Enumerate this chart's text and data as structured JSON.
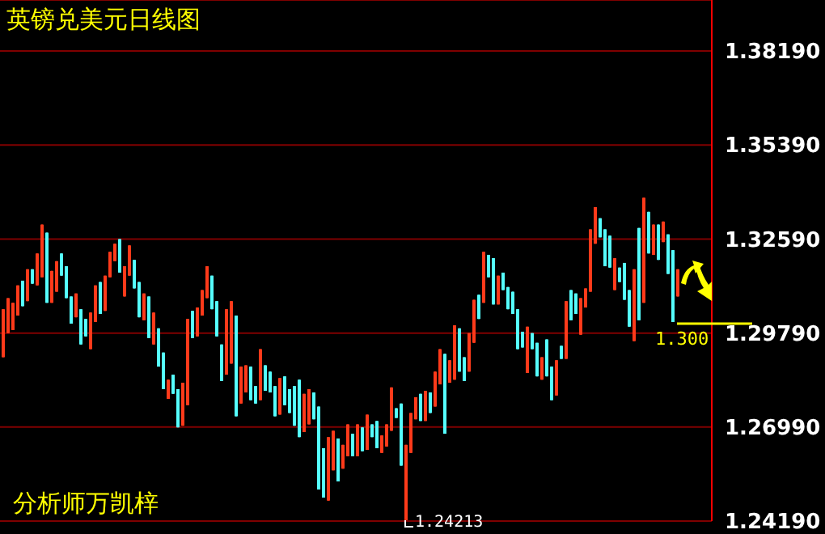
{
  "chart_data": {
    "type": "candlestick",
    "title": "英镑兑美元日线图",
    "categories": [
      null,
      null,
      null,
      null,
      null,
      null,
      null,
      null,
      null,
      null,
      null,
      null,
      null,
      null,
      null,
      null,
      null,
      null,
      null,
      null,
      null,
      null,
      null,
      null,
      null,
      null,
      null,
      null,
      null,
      null,
      null,
      null,
      null,
      null,
      null,
      null,
      null,
      null,
      null,
      null,
      null,
      null,
      null,
      null,
      null,
      null,
      null,
      null,
      null,
      null,
      null,
      null,
      null,
      null,
      null,
      null,
      null,
      null,
      null,
      null,
      null,
      null,
      null,
      null,
      null,
      null,
      null,
      null,
      null,
      null,
      null,
      null,
      null,
      null,
      null,
      null,
      null,
      null,
      null,
      null,
      null,
      null,
      null,
      null,
      null,
      null,
      null,
      null,
      null,
      null,
      null,
      null,
      null,
      null,
      null,
      null,
      null,
      null,
      null,
      null,
      null,
      null,
      null,
      null,
      null,
      null,
      null,
      null,
      null,
      null,
      null,
      null,
      null,
      null,
      null,
      null,
      null,
      null,
      null,
      null,
      null,
      null,
      null,
      null,
      null,
      null,
      null,
      null,
      null,
      null,
      null,
      null,
      null,
      null,
      null,
      null,
      null,
      null,
      null,
      null
    ],
    "ohlc": [
      [
        1.2907,
        1.305,
        1.2907,
        1.305
      ],
      [
        1.2979,
        1.3083,
        1.2979,
        1.3083
      ],
      [
        1.2988,
        1.3069,
        1.2988,
        1.3069
      ],
      [
        1.3031,
        1.3121,
        1.3031,
        1.3121
      ],
      [
        1.3135,
        1.3135,
        1.3059,
        1.3059
      ],
      [
        1.3074,
        1.3169,
        1.3074,
        1.3169
      ],
      [
        1.3169,
        1.3169,
        1.3126,
        1.3126
      ],
      [
        1.3121,
        1.3216,
        1.3121,
        1.3216
      ],
      [
        1.3145,
        1.3302,
        1.3145,
        1.3302
      ],
      [
        1.3278,
        1.3278,
        1.3069,
        1.3069
      ],
      [
        1.3069,
        1.3164,
        1.3069,
        1.3164
      ],
      [
        1.3102,
        1.3193,
        1.3102,
        1.3193
      ],
      [
        1.3216,
        1.3216,
        1.315,
        1.315
      ],
      [
        1.3178,
        1.3178,
        1.3083,
        1.3083
      ],
      [
        1.3088,
        1.3088,
        1.3007,
        1.3007
      ],
      [
        1.3026,
        1.3097,
        1.3026,
        1.3097
      ],
      [
        1.305,
        1.305,
        1.2945,
        1.2945
      ],
      [
        1.3021,
        1.3021,
        1.2969,
        1.2969
      ],
      [
        1.2931,
        1.304,
        1.2931,
        1.304
      ],
      [
        1.3012,
        1.3121,
        1.3012,
        1.3121
      ],
      [
        1.3131,
        1.3131,
        1.3036,
        1.3036
      ],
      [
        1.3045,
        1.315,
        1.3045,
        1.315
      ],
      [
        1.3145,
        1.3221,
        1.3145,
        1.3221
      ],
      [
        1.3193,
        1.3245,
        1.3193,
        1.3245
      ],
      [
        1.3259,
        1.3259,
        1.3159,
        1.3159
      ],
      [
        1.3088,
        1.3178,
        1.3088,
        1.3178
      ],
      [
        1.315,
        1.324,
        1.315,
        1.324
      ],
      [
        1.3197,
        1.3197,
        1.3112,
        1.3112
      ],
      [
        1.3131,
        1.3131,
        1.3026,
        1.3026
      ],
      [
        1.3017,
        1.3097,
        1.3017,
        1.3097
      ],
      [
        1.3088,
        1.3088,
        1.2964,
        1.2964
      ],
      [
        1.2945,
        1.304,
        1.2945,
        1.304
      ],
      [
        1.2993,
        1.2993,
        1.2879,
        1.2879
      ],
      [
        1.2921,
        1.2921,
        1.2812,
        1.2812
      ],
      [
        1.2783,
        1.284,
        1.2783,
        1.284
      ],
      [
        1.2855,
        1.2855,
        1.2798,
        1.2798
      ],
      [
        1.2812,
        1.2812,
        1.2698,
        1.2698
      ],
      [
        1.2703,
        1.2831,
        1.2703,
        1.2831
      ],
      [
        1.2764,
        1.3021,
        1.2764,
        1.3021
      ],
      [
        1.3045,
        1.3045,
        1.2964,
        1.2964
      ],
      [
        1.2969,
        1.3055,
        1.2969,
        1.3055
      ],
      [
        1.3031,
        1.3107,
        1.3031,
        1.3107
      ],
      [
        1.3083,
        1.3178,
        1.3083,
        1.3178
      ],
      [
        1.315,
        1.315,
        1.305,
        1.305
      ],
      [
        1.3074,
        1.3074,
        1.2969,
        1.2969
      ],
      [
        1.2945,
        1.2945,
        1.2836,
        1.2836
      ],
      [
        1.2855,
        1.305,
        1.2855,
        1.305
      ],
      [
        1.2888,
        1.3074,
        1.2888,
        1.3074
      ],
      [
        1.3031,
        1.3031,
        1.2731,
        1.2731
      ],
      [
        1.2769,
        1.2879,
        1.2769,
        1.2879
      ],
      [
        1.2802,
        1.2883,
        1.2802,
        1.2883
      ],
      [
        1.2879,
        1.2879,
        1.2779,
        1.2779
      ],
      [
        1.2821,
        1.2821,
        1.2769,
        1.2769
      ],
      [
        1.2779,
        1.2931,
        1.2779,
        1.2931
      ],
      [
        1.2883,
        1.2883,
        1.2807,
        1.2807
      ],
      [
        1.2864,
        1.2864,
        1.2802,
        1.2802
      ],
      [
        1.2821,
        1.2821,
        1.2731,
        1.2731
      ],
      [
        1.2736,
        1.2845,
        1.2736,
        1.2845
      ],
      [
        1.285,
        1.285,
        1.2764,
        1.2764
      ],
      [
        1.2812,
        1.2812,
        1.2741,
        1.2741
      ],
      [
        1.2821,
        1.2821,
        1.2703,
        1.2703
      ],
      [
        1.284,
        1.284,
        1.2669,
        1.2669
      ],
      [
        1.2684,
        1.2798,
        1.2684,
        1.2798
      ],
      [
        1.2707,
        1.2812,
        1.2707,
        1.2812
      ],
      [
        1.2802,
        1.2802,
        1.2722,
        1.2722
      ],
      [
        1.276,
        1.276,
        1.2513,
        1.2513
      ],
      [
        1.2636,
        1.2636,
        1.2489,
        1.2489
      ],
      [
        1.248,
        1.2669,
        1.248,
        1.2669
      ],
      [
        1.257,
        1.2688,
        1.257,
        1.2688
      ],
      [
        1.2665,
        1.2665,
        1.2537,
        1.2537
      ],
      [
        1.2575,
        1.2646,
        1.2575,
        1.2646
      ],
      [
        1.2612,
        1.2707,
        1.2612,
        1.2707
      ],
      [
        1.2679,
        1.2679,
        1.2612,
        1.2612
      ],
      [
        1.2612,
        1.2707,
        1.2612,
        1.2707
      ],
      [
        1.2698,
        1.2698,
        1.2627,
        1.2627
      ],
      [
        1.2631,
        1.2736,
        1.2631,
        1.2736
      ],
      [
        1.2707,
        1.2707,
        1.2669,
        1.2669
      ],
      [
        1.2717,
        1.2717,
        1.2636,
        1.2636
      ],
      [
        1.2622,
        1.2674,
        1.2622,
        1.2674
      ],
      [
        1.2641,
        1.2707,
        1.2641,
        1.2707
      ],
      [
        1.2688,
        1.2817,
        1.2688,
        1.2817
      ],
      [
        1.2755,
        1.2755,
        1.2726,
        1.2726
      ],
      [
        1.2769,
        1.2769,
        1.2584,
        1.2584
      ],
      [
        1.24213,
        1.2646,
        1.24213,
        1.2646
      ],
      [
        1.2622,
        1.2741,
        1.2622,
        1.2741
      ],
      [
        1.2722,
        1.2788,
        1.2722,
        1.2788
      ],
      [
        1.2798,
        1.2798,
        1.2717,
        1.2717
      ],
      [
        1.2717,
        1.2807,
        1.2717,
        1.2807
      ],
      [
        1.2802,
        1.2802,
        1.2741,
        1.2741
      ],
      [
        1.276,
        1.2864,
        1.276,
        1.2864
      ],
      [
        1.2826,
        1.2931,
        1.2826,
        1.2931
      ],
      [
        1.2917,
        1.2917,
        1.2679,
        1.2679
      ],
      [
        1.2831,
        1.2898,
        1.2831,
        1.2898
      ],
      [
        1.284,
        1.3002,
        1.284,
        1.3002
      ],
      [
        1.2993,
        1.2993,
        1.2864,
        1.2864
      ],
      [
        1.2907,
        1.2907,
        1.2836,
        1.2836
      ],
      [
        1.2864,
        1.2979,
        1.2864,
        1.2979
      ],
      [
        1.295,
        1.3078,
        1.295,
        1.3078
      ],
      [
        1.3093,
        1.3093,
        1.3021,
        1.3021
      ],
      [
        1.3069,
        1.3221,
        1.3069,
        1.3221
      ],
      [
        1.3212,
        1.3212,
        1.3145,
        1.3145
      ],
      [
        1.3202,
        1.3202,
        1.3064,
        1.3064
      ],
      [
        1.3064,
        1.315,
        1.3064,
        1.315
      ],
      [
        1.3159,
        1.3159,
        1.3107,
        1.3107
      ],
      [
        1.3116,
        1.3116,
        1.305,
        1.305
      ],
      [
        1.3102,
        1.3102,
        1.3036,
        1.3036
      ],
      [
        1.305,
        1.305,
        1.2931,
        1.2931
      ],
      [
        1.2983,
        1.2983,
        1.2936,
        1.2936
      ],
      [
        1.286,
        1.2998,
        1.286,
        1.2998
      ],
      [
        1.2979,
        1.2979,
        1.2931,
        1.2931
      ],
      [
        1.295,
        1.295,
        1.285,
        1.285
      ],
      [
        1.284,
        1.2907,
        1.284,
        1.2907
      ],
      [
        1.296,
        1.296,
        1.285,
        1.285
      ],
      [
        1.2879,
        1.2879,
        1.2779,
        1.2779
      ],
      [
        1.2793,
        1.2898,
        1.2793,
        1.2898
      ],
      [
        1.2941,
        1.2941,
        1.2902,
        1.2902
      ],
      [
        1.2902,
        1.3074,
        1.2902,
        1.3074
      ],
      [
        1.3107,
        1.3107,
        1.3017,
        1.3017
      ],
      [
        1.3097,
        1.3097,
        1.3036,
        1.3036
      ],
      [
        1.2974,
        1.3083,
        1.2974,
        1.3083
      ],
      [
        1.3055,
        1.3112,
        1.3055,
        1.3112
      ],
      [
        1.3102,
        1.3288,
        1.3102,
        1.3288
      ],
      [
        1.3245,
        1.3354,
        1.3245,
        1.3354
      ],
      [
        1.3321,
        1.3321,
        1.3264,
        1.3264
      ],
      [
        1.3288,
        1.3288,
        1.3178,
        1.3178
      ],
      [
        1.3269,
        1.3269,
        1.3174,
        1.3174
      ],
      [
        1.3107,
        1.3202,
        1.3107,
        1.3202
      ],
      [
        1.3174,
        1.3174,
        1.3131,
        1.3131
      ],
      [
        1.3188,
        1.3188,
        1.3078,
        1.3078
      ],
      [
        1.3107,
        1.3107,
        1.2998,
        1.2998
      ],
      [
        1.2955,
        1.3169,
        1.2955,
        1.3169
      ],
      [
        1.3292,
        1.3292,
        1.3017,
        1.3017
      ],
      [
        1.3069,
        1.3382,
        1.3069,
        1.3382
      ],
      [
        1.334,
        1.334,
        1.3216,
        1.3216
      ],
      [
        1.3212,
        1.3302,
        1.3212,
        1.3302
      ],
      [
        1.3302,
        1.3302,
        1.3197,
        1.3197
      ],
      [
        1.325,
        1.3311,
        1.325,
        1.3311
      ],
      [
        1.3273,
        1.3273,
        1.3155,
        1.3155
      ],
      [
        1.3226,
        1.3226,
        1.3012,
        1.3012
      ],
      [
        1.3088,
        1.3169,
        1.3088,
        1.3169
      ]
    ],
    "colors": [
      "#ff3a1a",
      "#ff3a1a",
      "#ff3a1a",
      "#ff3a1a",
      "#55ffff",
      "#ff3a1a",
      "#55ffff",
      "#ff3a1a",
      "#ff3a1a",
      "#55ffff",
      "#ff3a1a",
      "#ff3a1a",
      "#55ffff",
      "#55ffff",
      "#55ffff",
      "#ff3a1a",
      "#55ffff",
      "#55ffff",
      "#ff3a1a",
      "#ff3a1a",
      "#55ffff",
      "#ff3a1a",
      "#ff3a1a",
      "#ff3a1a",
      "#55ffff",
      "#ff3a1a",
      "#ff3a1a",
      "#55ffff",
      "#55ffff",
      "#ff3a1a",
      "#55ffff",
      "#ff3a1a",
      "#55ffff",
      "#55ffff",
      "#ff3a1a",
      "#55ffff",
      "#55ffff",
      "#ff3a1a",
      "#ff3a1a",
      "#55ffff",
      "#ff3a1a",
      "#ff3a1a",
      "#ff3a1a",
      "#55ffff",
      "#55ffff",
      "#55ffff",
      "#ff3a1a",
      "#ff3a1a",
      "#55ffff",
      "#ff3a1a",
      "#ff3a1a",
      "#55ffff",
      "#55ffff",
      "#ff3a1a",
      "#55ffff",
      "#55ffff",
      "#55ffff",
      "#ff3a1a",
      "#55ffff",
      "#55ffff",
      "#55ffff",
      "#55ffff",
      "#ff3a1a",
      "#ff3a1a",
      "#55ffff",
      "#55ffff",
      "#55ffff",
      "#ff3a1a",
      "#ff3a1a",
      "#55ffff",
      "#ff3a1a",
      "#ff3a1a",
      "#55ffff",
      "#ff3a1a",
      "#55ffff",
      "#ff3a1a",
      "#55ffff",
      "#55ffff",
      "#ff3a1a",
      "#ff3a1a",
      "#ff3a1a",
      "#55ffff",
      "#55ffff",
      "#ff3a1a",
      "#ff3a1a",
      "#ff3a1a",
      "#55ffff",
      "#ff3a1a",
      "#55ffff",
      "#ff3a1a",
      "#ff3a1a",
      "#55ffff",
      "#ff3a1a",
      "#ff3a1a",
      "#55ffff",
      "#55ffff",
      "#ff3a1a",
      "#ff3a1a",
      "#55ffff",
      "#ff3a1a",
      "#55ffff",
      "#55ffff",
      "#ff3a1a",
      "#55ffff",
      "#55ffff",
      "#55ffff",
      "#55ffff",
      "#55ffff",
      "#ff3a1a",
      "#55ffff",
      "#55ffff",
      "#ff3a1a",
      "#55ffff",
      "#55ffff",
      "#ff3a1a",
      "#55ffff",
      "#ff3a1a",
      "#55ffff",
      "#55ffff",
      "#ff3a1a",
      "#ff3a1a",
      "#ff3a1a",
      "#ff3a1a",
      "#55ffff",
      "#55ffff",
      "#55ffff",
      "#ff3a1a",
      "#55ffff",
      "#55ffff",
      "#55ffff",
      "#ff3a1a",
      "#55ffff",
      "#ff3a1a",
      "#55ffff",
      "#ff3a1a",
      "#55ffff",
      "#ff3a1a",
      "#55ffff",
      "#55ffff",
      "#ff3a1a"
    ],
    "ylim": [
      1.2419,
      1.3971
    ],
    "yticks": [
      {
        "value": 1.2419,
        "label": "1.24190"
      },
      {
        "value": 1.2699,
        "label": "1.26990"
      },
      {
        "value": 1.2979,
        "label": "1.29790"
      },
      {
        "value": 1.3259,
        "label": "1.32590"
      },
      {
        "value": 1.3539,
        "label": "1.35390"
      },
      {
        "value": 1.3819,
        "label": "1.38190"
      }
    ],
    "grid": "y",
    "tick_labels": "y",
    "annotations": [
      "分析师万凯梓",
      "1.24213",
      "1.300"
    ]
  }
}
